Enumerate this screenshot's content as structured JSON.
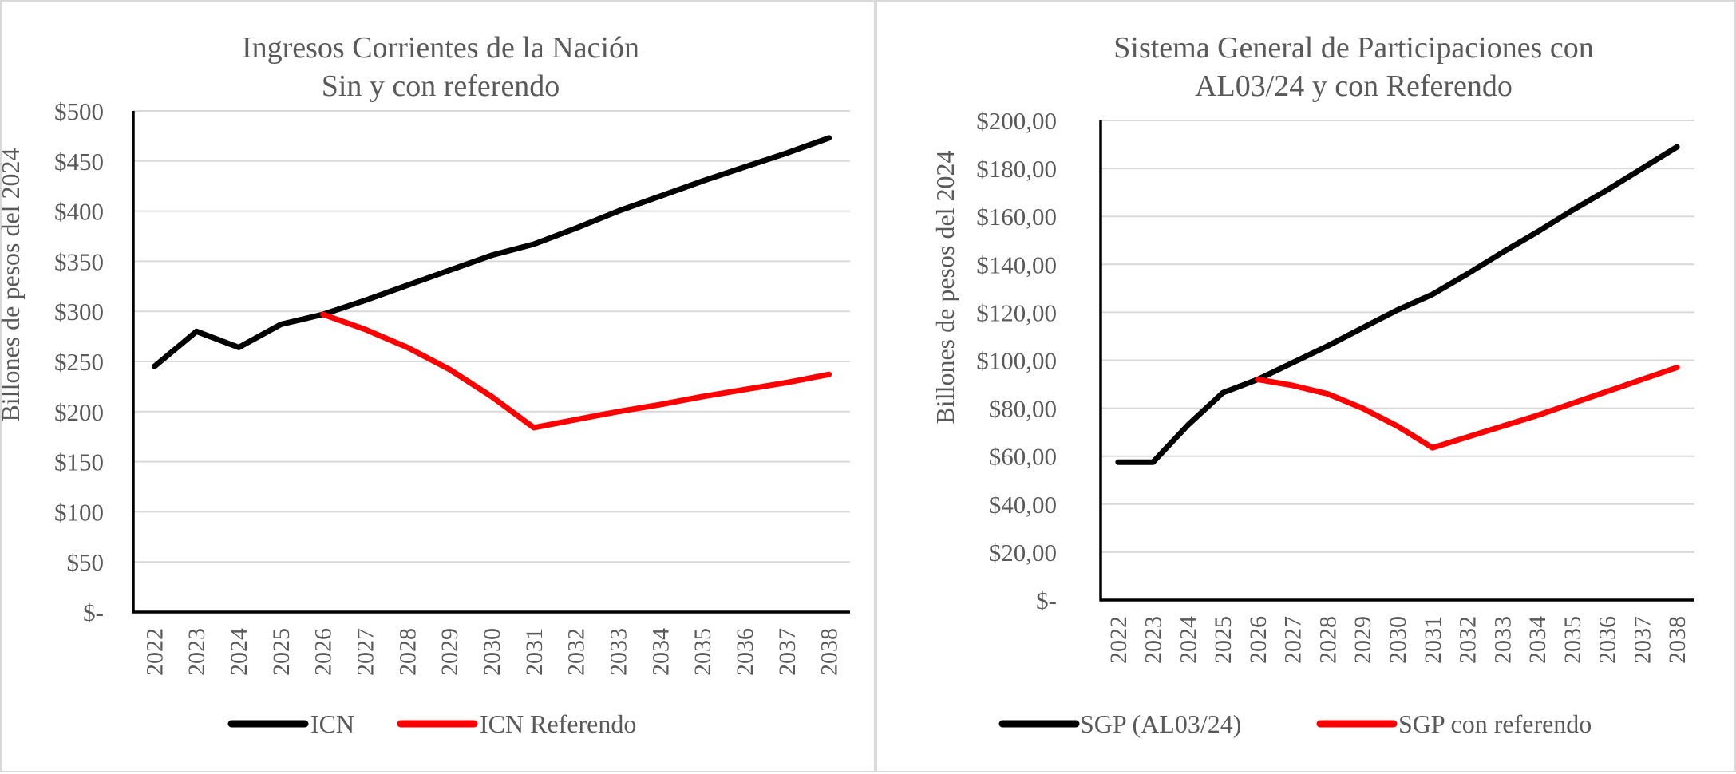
{
  "charts": {
    "left": {
      "title_line1": "Ingresos Corrientes de la Nación",
      "title_line2": "Sin y con referendo",
      "ylabel": "Billones de pesos del 2024",
      "legend": {
        "series1": "ICN",
        "series2": "ICN Referendo"
      }
    },
    "right": {
      "title_line1": "Sistema General de Participaciones con",
      "title_line2": "AL03/24 y con Referendo",
      "ylabel": "Billones de pesos del 2024",
      "legend": {
        "series1": "SGP (AL03/24)",
        "series2": "SGP con referendo"
      }
    }
  },
  "chart_data": [
    {
      "type": "line",
      "title": "Ingresos Corrientes de la Nación Sin y con referendo",
      "xlabel": "",
      "ylabel": "Billones de pesos del 2024",
      "x": [
        "2022",
        "2023",
        "2024",
        "2025",
        "2026",
        "2027",
        "2028",
        "2029",
        "2030",
        "2031",
        "2032",
        "2033",
        "2034",
        "2035",
        "2036",
        "2037",
        "2038"
      ],
      "ylim": [
        0,
        500
      ],
      "yticks": [
        0,
        50,
        100,
        150,
        200,
        250,
        300,
        350,
        400,
        450,
        500
      ],
      "yticklabels": [
        "$-",
        "$50",
        "$100",
        "$150",
        "$200",
        "$250",
        "$300",
        "$350",
        "$400",
        "$450",
        "$500"
      ],
      "grid": true,
      "legend": "bottom",
      "series": [
        {
          "name": "ICN",
          "color": "#000000",
          "values": [
            245,
            280,
            264,
            287,
            297,
            311,
            326,
            341,
            356,
            367,
            383,
            400,
            415,
            430,
            444,
            458,
            473
          ]
        },
        {
          "name": "ICN Referendo",
          "color": "#ff0000",
          "values": [
            null,
            null,
            null,
            null,
            297,
            282,
            264,
            242,
            215,
            184,
            192,
            200,
            207,
            215,
            222,
            229,
            237
          ]
        }
      ]
    },
    {
      "type": "line",
      "title": "Sistema General de Participaciones con AL03/24 y con Referendo",
      "xlabel": "",
      "ylabel": "Billones de pesos del 2024",
      "x": [
        "2022",
        "2023",
        "2024",
        "2025",
        "2026",
        "2027",
        "2028",
        "2029",
        "2030",
        "2031",
        "2032",
        "2033",
        "2034",
        "2035",
        "2036",
        "2037",
        "2038"
      ],
      "ylim": [
        0,
        200
      ],
      "yticks": [
        0,
        20,
        40,
        60,
        80,
        100,
        120,
        140,
        160,
        180,
        200
      ],
      "yticklabels": [
        "$-",
        "$20,00",
        "$40,00",
        "$60,00",
        "$80,00",
        "$100,00",
        "$120,00",
        "$140,00",
        "$160,00",
        "$180,00",
        "$200,00"
      ],
      "grid": true,
      "legend": "bottom",
      "series": [
        {
          "name": "SGP (AL03/24)",
          "color": "#000000",
          "values": [
            57.5,
            57.5,
            73,
            86.5,
            92,
            99,
            106,
            113.5,
            121,
            127.5,
            136,
            145,
            153.5,
            162.5,
            171,
            180,
            189
          ]
        },
        {
          "name": "SGP con referendo",
          "color": "#ff0000",
          "values": [
            null,
            null,
            null,
            null,
            92,
            89.5,
            86,
            80,
            72.5,
            63.5,
            68,
            72.5,
            77,
            82,
            87,
            92,
            97
          ]
        }
      ]
    }
  ]
}
